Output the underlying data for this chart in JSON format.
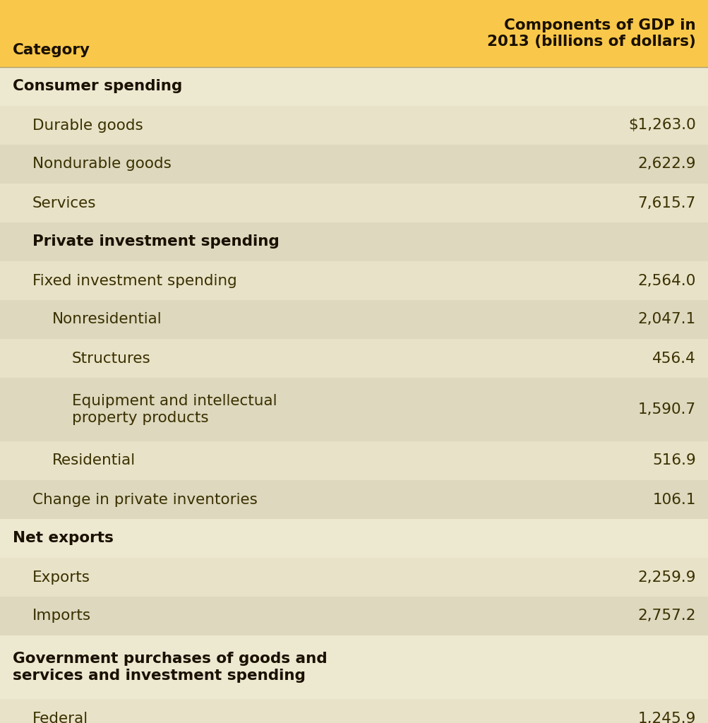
{
  "header_col1": "Category",
  "header_col2": "Components of GDP in\n2013 (billions of dollars)",
  "header_bg": "#f9c84a",
  "rows": [
    {
      "label": "Consumer spending",
      "value": "",
      "bold": true,
      "indent": 0,
      "bg": "#ede8d0"
    },
    {
      "label": "Durable goods",
      "value": "$1,263.0",
      "bold": false,
      "indent": 1,
      "bg": "#e8e2c8"
    },
    {
      "label": "Nondurable goods",
      "value": "2,622.9",
      "bold": false,
      "indent": 1,
      "bg": "#ddd8be"
    },
    {
      "label": "Services",
      "value": "7,615.7",
      "bold": false,
      "indent": 1,
      "bg": "#e8e2c8"
    },
    {
      "label": "Private investment spending",
      "value": "",
      "bold": true,
      "indent": 1,
      "bg": "#ddd8be"
    },
    {
      "label": "Fixed investment spending",
      "value": "2,564.0",
      "bold": false,
      "indent": 1,
      "bg": "#e8e2c8"
    },
    {
      "label": "Nonresidential",
      "value": "2,047.1",
      "bold": false,
      "indent": 2,
      "bg": "#ddd8be"
    },
    {
      "label": "Structures",
      "value": "456.4",
      "bold": false,
      "indent": 3,
      "bg": "#e8e2c8"
    },
    {
      "label": "Equipment and intellectual\nproperty products",
      "value": "1,590.7",
      "bold": false,
      "indent": 3,
      "bg": "#ddd8be"
    },
    {
      "label": "Residential",
      "value": "516.9",
      "bold": false,
      "indent": 2,
      "bg": "#e8e2c8"
    },
    {
      "label": "Change in private inventories",
      "value": "106.1",
      "bold": false,
      "indent": 1,
      "bg": "#ddd8be"
    },
    {
      "label": "Net exports",
      "value": "",
      "bold": true,
      "indent": 0,
      "bg": "#ede8d0"
    },
    {
      "label": "Exports",
      "value": "2,259.9",
      "bold": false,
      "indent": 1,
      "bg": "#e8e2c8"
    },
    {
      "label": "Imports",
      "value": "2,757.2",
      "bold": false,
      "indent": 1,
      "bg": "#ddd8be"
    },
    {
      "label": "Government purchases of goods and\nservices and investment spending",
      "value": "",
      "bold": true,
      "indent": 0,
      "bg": "#ede8d0"
    },
    {
      "label": "Federal",
      "value": "1,245.9",
      "bold": false,
      "indent": 1,
      "bg": "#e8e2c8"
    }
  ],
  "text_color": "#3a3000",
  "bold_text_color": "#1a1000",
  "value_color": "#3a3000",
  "font_size": 15.5,
  "header_font_size": 15.5,
  "fig_bg": "#f9e898"
}
